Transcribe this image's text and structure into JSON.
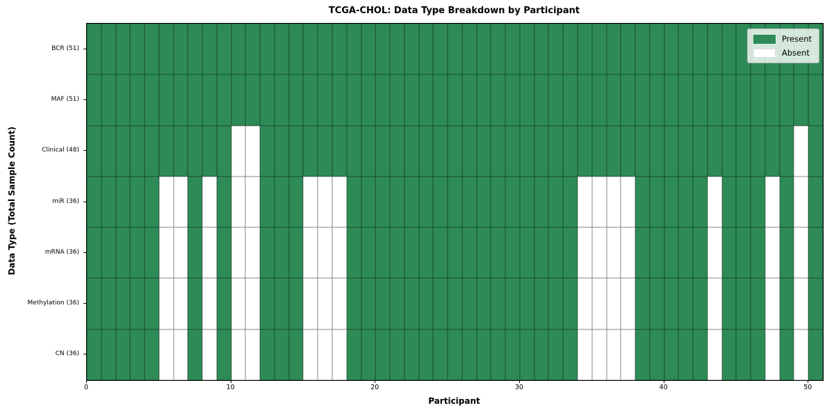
{
  "chart_data": {
    "type": "heatmap",
    "title": "TCGA-CHOL: Data Type Breakdown by Participant",
    "xlabel": "Participant",
    "ylabel": "Data Type (Total Sample Count)",
    "n_participants": 51,
    "x_ticks": [
      0,
      10,
      20,
      30,
      40,
      50
    ],
    "colors": {
      "present": "#2e8b57",
      "absent": "#ffffff"
    },
    "legend": [
      {
        "label": "Present",
        "color": "#2e8b57"
      },
      {
        "label": "Absent",
        "color": "#ffffff"
      }
    ],
    "rows": [
      {
        "label": "BCR (51)",
        "present_count": 51,
        "absent": []
      },
      {
        "label": "MAF (51)",
        "present_count": 51,
        "absent": []
      },
      {
        "label": "Clinical (48)",
        "present_count": 48,
        "absent": [
          10,
          11,
          49
        ]
      },
      {
        "label": "miR (36)",
        "present_count": 36,
        "absent": [
          5,
          6,
          8,
          10,
          11,
          15,
          16,
          17,
          34,
          35,
          36,
          37,
          43,
          47,
          49
        ]
      },
      {
        "label": "mRNA (36)",
        "present_count": 36,
        "absent": [
          5,
          6,
          8,
          10,
          11,
          15,
          16,
          17,
          34,
          35,
          36,
          37,
          43,
          47,
          49
        ]
      },
      {
        "label": "Methylation (36)",
        "present_count": 36,
        "absent": [
          5,
          6,
          8,
          10,
          11,
          15,
          16,
          17,
          34,
          35,
          36,
          37,
          43,
          47,
          49
        ]
      },
      {
        "label": "CN (36)",
        "present_count": 36,
        "absent": [
          5,
          6,
          8,
          10,
          11,
          15,
          16,
          17,
          34,
          35,
          36,
          37,
          43,
          47,
          49
        ]
      }
    ],
    "axis_ranges": {
      "x": [
        0,
        51
      ],
      "rows": 7
    },
    "grid": true,
    "legend_position": "upper right"
  }
}
